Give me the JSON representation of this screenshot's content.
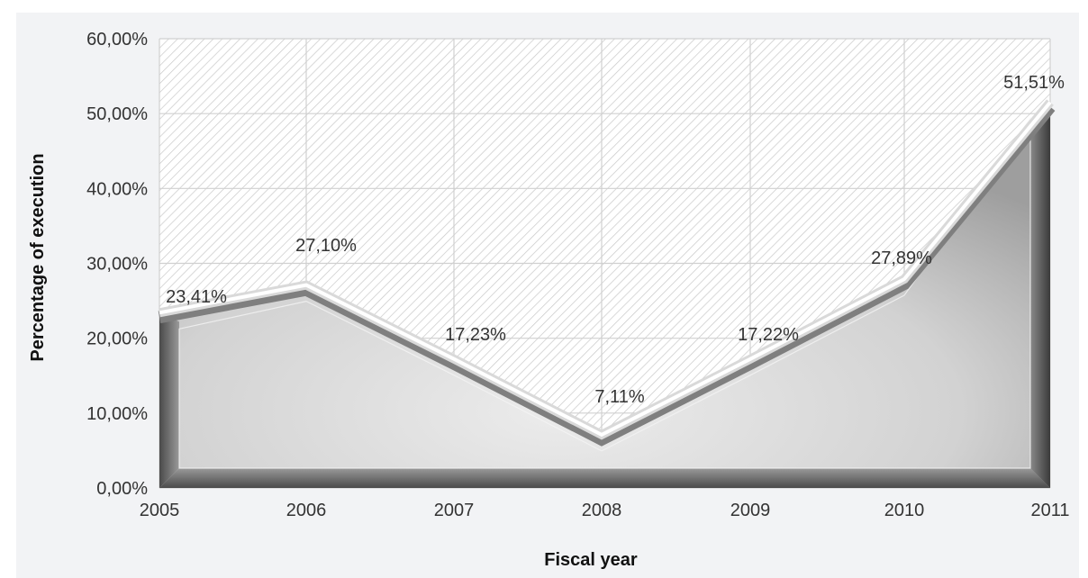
{
  "chart_data": {
    "type": "area",
    "categories": [
      "2005",
      "2006",
      "2007",
      "2008",
      "2009",
      "2010",
      "2011"
    ],
    "series": [
      {
        "values": [
          23.41,
          27.1,
          17.23,
          7.11,
          17.22,
          27.89,
          51.51
        ]
      }
    ],
    "data_labels": [
      "23,41%",
      "27,10%",
      "17,23%",
      "7,11%",
      "17,22%",
      "27,89%",
      "51,51%"
    ],
    "y_ticks": [
      "0,00%",
      "10,00%",
      "20,00%",
      "30,00%",
      "40,00%",
      "50,00%",
      "60,00%"
    ],
    "ylim": [
      0,
      60
    ],
    "xlabel": "Fiscal year",
    "ylabel": "Percentage of execution",
    "grid": true,
    "legend": "none",
    "colors": {
      "area_light": "#e6e6e6",
      "area_dark": "#6a6a6a",
      "ridge": "#ffffff",
      "grid": "#d0d0d0",
      "hatch": "#c8c8c8"
    }
  }
}
